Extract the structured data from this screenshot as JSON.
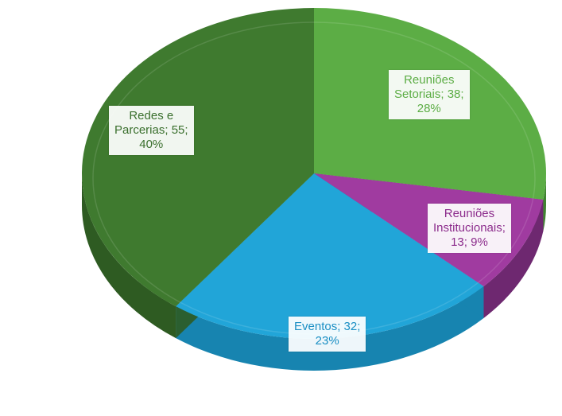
{
  "chart_data": {
    "type": "pie",
    "title": "",
    "three_d": true,
    "slices": [
      {
        "name": "Reuniões Setoriais",
        "value": 38,
        "percent": "28%",
        "color": "#5cad45",
        "side_color": "#3f8330",
        "label_color": "#5cad45",
        "label_lines": [
          "Reuniões",
          "Setoriais; 38;",
          "28%"
        ]
      },
      {
        "name": "Reuniões Institucionais",
        "value": 13,
        "percent": "9%",
        "color": "#a03ba0",
        "side_color": "#6e2870",
        "label_color": "#8c2c8c",
        "label_lines": [
          "Reuniões",
          "Institucionais;",
          "13; 9%"
        ]
      },
      {
        "name": "Eventos",
        "value": 32,
        "percent": "23%",
        "color": "#21a5d8",
        "side_color": "#1784b0",
        "label_color": "#1a8fc4",
        "label_lines": [
          "Eventos; 32;",
          "23%"
        ]
      },
      {
        "name": "Redes e Parcerias",
        "value": 55,
        "percent": "40%",
        "color": "#3f7a2f",
        "side_color": "#2e5b22",
        "label_color": "#3a6f2d",
        "label_lines": [
          "Redes e",
          "Parcerias; 55;",
          "40%"
        ]
      }
    ]
  }
}
